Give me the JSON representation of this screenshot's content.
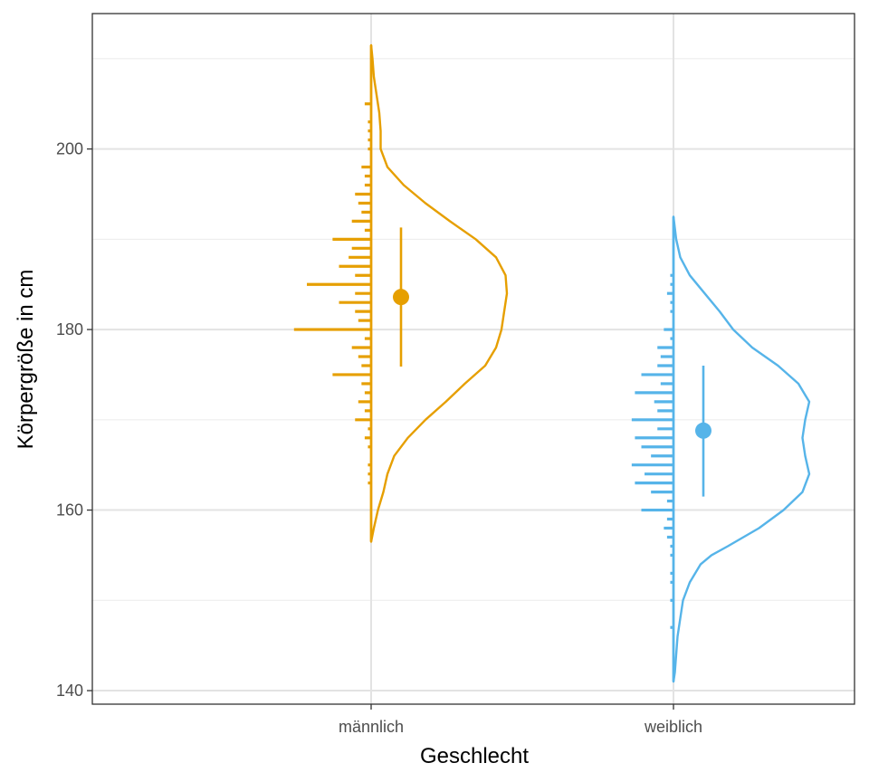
{
  "chart_data": {
    "type": "raincloud",
    "xlabel": "Geschlecht",
    "ylabel": "Körpergröße in cm",
    "ylim": [
      138.5,
      215
    ],
    "y_ticks": [
      140,
      160,
      180,
      200
    ],
    "y_minor_ticks": [
      150,
      170,
      190,
      210
    ],
    "categories": [
      "männlich",
      "weiblich"
    ],
    "grid": true,
    "background": "#ffffff",
    "series": [
      {
        "category": "männlich",
        "color": "#E69F00",
        "summary": {
          "mean": 183.6,
          "lower": 175.9,
          "upper": 191.3
        },
        "density_range": [
          156.5,
          211.5
        ],
        "density": [
          [
            156.5,
            0.0
          ],
          [
            158,
            0.02
          ],
          [
            160,
            0.05
          ],
          [
            162,
            0.09
          ],
          [
            164,
            0.12
          ],
          [
            166,
            0.17
          ],
          [
            168,
            0.27
          ],
          [
            170,
            0.4
          ],
          [
            172,
            0.55
          ],
          [
            174,
            0.69
          ],
          [
            176,
            0.84
          ],
          [
            178,
            0.92
          ],
          [
            180,
            0.96
          ],
          [
            182,
            0.98
          ],
          [
            183,
            0.99
          ],
          [
            184,
            1.0
          ],
          [
            186,
            0.99
          ],
          [
            188,
            0.92
          ],
          [
            190,
            0.77
          ],
          [
            192,
            0.58
          ],
          [
            194,
            0.4
          ],
          [
            196,
            0.24
          ],
          [
            198,
            0.12
          ],
          [
            200,
            0.07
          ],
          [
            202,
            0.07
          ],
          [
            204,
            0.06
          ],
          [
            206,
            0.04
          ],
          [
            208,
            0.02
          ],
          [
            210,
            0.01
          ],
          [
            211.5,
            0.0
          ]
        ],
        "histogram": [
          [
            163,
            1
          ],
          [
            164,
            1
          ],
          [
            165,
            1
          ],
          [
            167,
            1
          ],
          [
            168,
            2
          ],
          [
            169,
            1
          ],
          [
            170,
            5
          ],
          [
            171,
            2
          ],
          [
            172,
            4
          ],
          [
            173,
            2
          ],
          [
            174,
            3
          ],
          [
            175,
            12
          ],
          [
            176,
            3
          ],
          [
            177,
            4
          ],
          [
            178,
            6
          ],
          [
            179,
            2
          ],
          [
            180,
            24
          ],
          [
            181,
            4
          ],
          [
            182,
            5
          ],
          [
            183,
            10
          ],
          [
            184,
            5
          ],
          [
            185,
            20
          ],
          [
            186,
            5
          ],
          [
            187,
            10
          ],
          [
            188,
            7
          ],
          [
            189,
            6
          ],
          [
            190,
            12
          ],
          [
            191,
            2
          ],
          [
            192,
            6
          ],
          [
            193,
            3
          ],
          [
            194,
            4
          ],
          [
            195,
            5
          ],
          [
            196,
            2
          ],
          [
            197,
            2
          ],
          [
            198,
            3
          ],
          [
            200,
            1
          ],
          [
            201,
            1
          ],
          [
            202,
            1
          ],
          [
            203,
            1
          ],
          [
            205,
            2
          ]
        ]
      },
      {
        "category": "weiblich",
        "color": "#56B4E9",
        "summary": {
          "mean": 168.8,
          "lower": 161.5,
          "upper": 176.0
        },
        "density_range": [
          141,
          192.5
        ],
        "density": [
          [
            141,
            0.0
          ],
          [
            142,
            0.01
          ],
          [
            144,
            0.02
          ],
          [
            146,
            0.03
          ],
          [
            148,
            0.05
          ],
          [
            150,
            0.07
          ],
          [
            152,
            0.12
          ],
          [
            154,
            0.2
          ],
          [
            155,
            0.28
          ],
          [
            156,
            0.4
          ],
          [
            158,
            0.63
          ],
          [
            160,
            0.81
          ],
          [
            162,
            0.95
          ],
          [
            164,
            1.0
          ],
          [
            166,
            0.97
          ],
          [
            168,
            0.95
          ],
          [
            170,
            0.97
          ],
          [
            172,
            1.0
          ],
          [
            174,
            0.92
          ],
          [
            176,
            0.77
          ],
          [
            178,
            0.58
          ],
          [
            180,
            0.44
          ],
          [
            182,
            0.34
          ],
          [
            184,
            0.23
          ],
          [
            186,
            0.12
          ],
          [
            188,
            0.05
          ],
          [
            190,
            0.02
          ],
          [
            192.5,
            0.0
          ]
        ],
        "histogram": [
          [
            147,
            1
          ],
          [
            150,
            1
          ],
          [
            152,
            1
          ],
          [
            153,
            1
          ],
          [
            155,
            1
          ],
          [
            156,
            1
          ],
          [
            157,
            2
          ],
          [
            158,
            3
          ],
          [
            159,
            2
          ],
          [
            160,
            10
          ],
          [
            161,
            2
          ],
          [
            162,
            7
          ],
          [
            163,
            12
          ],
          [
            164,
            9
          ],
          [
            165,
            13
          ],
          [
            166,
            7
          ],
          [
            167,
            10
          ],
          [
            168,
            12
          ],
          [
            169,
            5
          ],
          [
            170,
            13
          ],
          [
            171,
            5
          ],
          [
            172,
            6
          ],
          [
            173,
            12
          ],
          [
            174,
            4
          ],
          [
            175,
            10
          ],
          [
            176,
            5
          ],
          [
            177,
            4
          ],
          [
            178,
            5
          ],
          [
            179,
            1
          ],
          [
            180,
            3
          ],
          [
            182,
            1
          ],
          [
            183,
            1
          ],
          [
            184,
            2
          ],
          [
            185,
            1
          ],
          [
            186,
            1
          ]
        ]
      }
    ]
  }
}
